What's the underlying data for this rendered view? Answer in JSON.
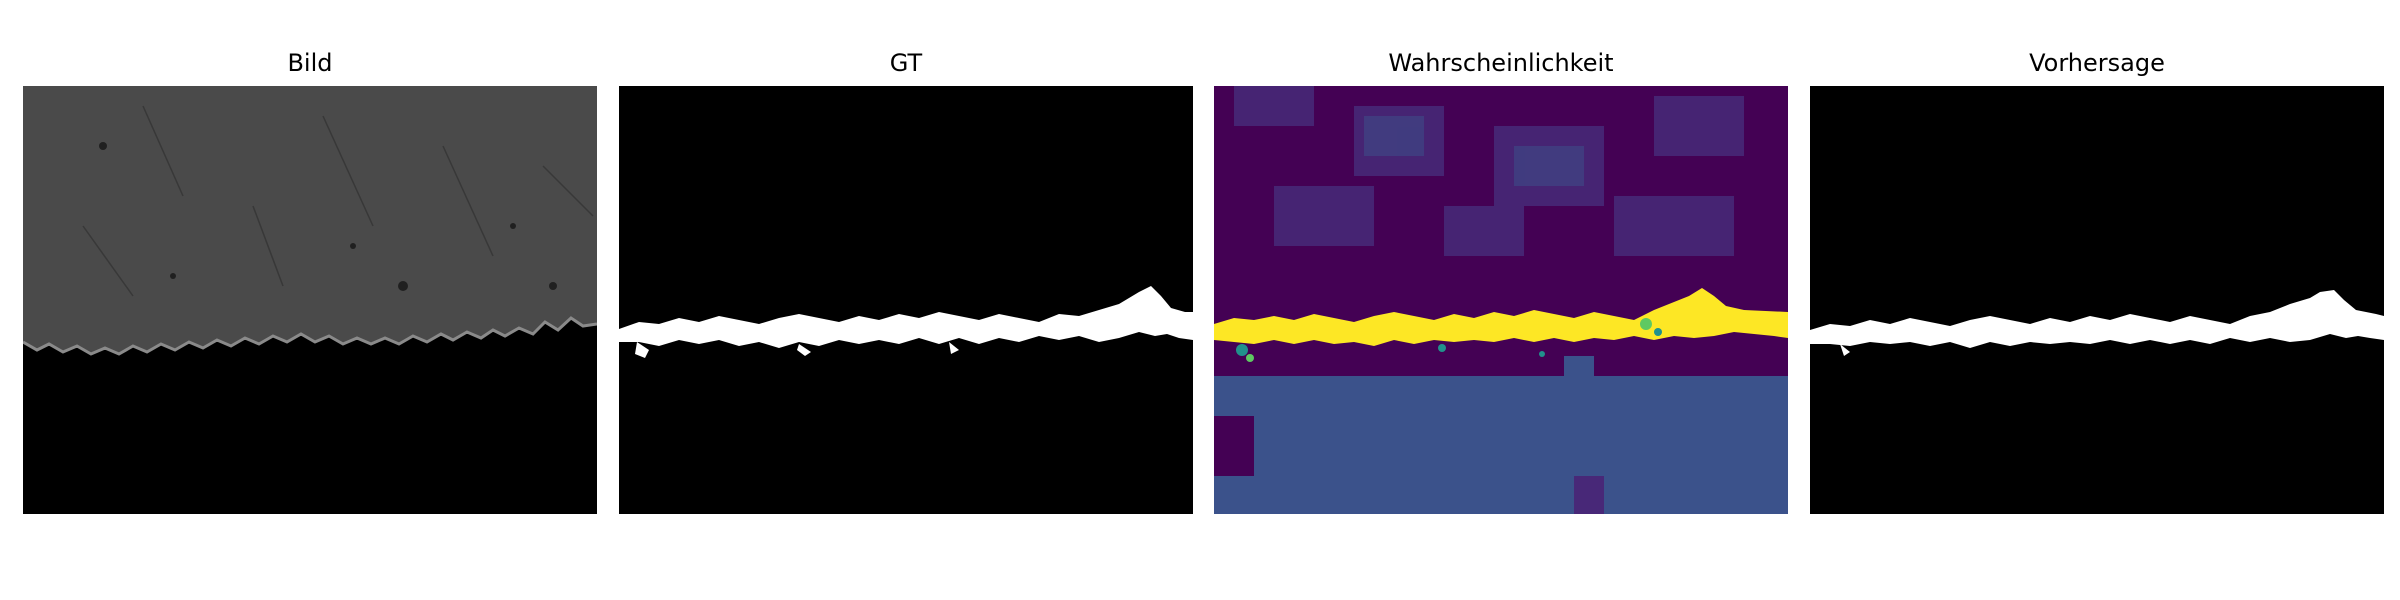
{
  "figure": {
    "panels": [
      {
        "title": "Bild",
        "kind": "grayscale-photo"
      },
      {
        "title": "GT",
        "kind": "binary-mask"
      },
      {
        "title": "Wahrscheinlichkeit",
        "kind": "probability-heatmap"
      },
      {
        "title": "Vorhersage",
        "kind": "binary-mask"
      }
    ]
  },
  "colors": {
    "background": "#ffffff",
    "mask_foreground": "#ffffff",
    "mask_background": "#000000",
    "viridis_low": "#440154",
    "viridis_mid": "#3b528b",
    "viridis_cyan": "#21918c",
    "viridis_green": "#5ec962",
    "viridis_high": "#fde725",
    "photo_upper": "#4a4a4a",
    "photo_lower": "#000000"
  }
}
